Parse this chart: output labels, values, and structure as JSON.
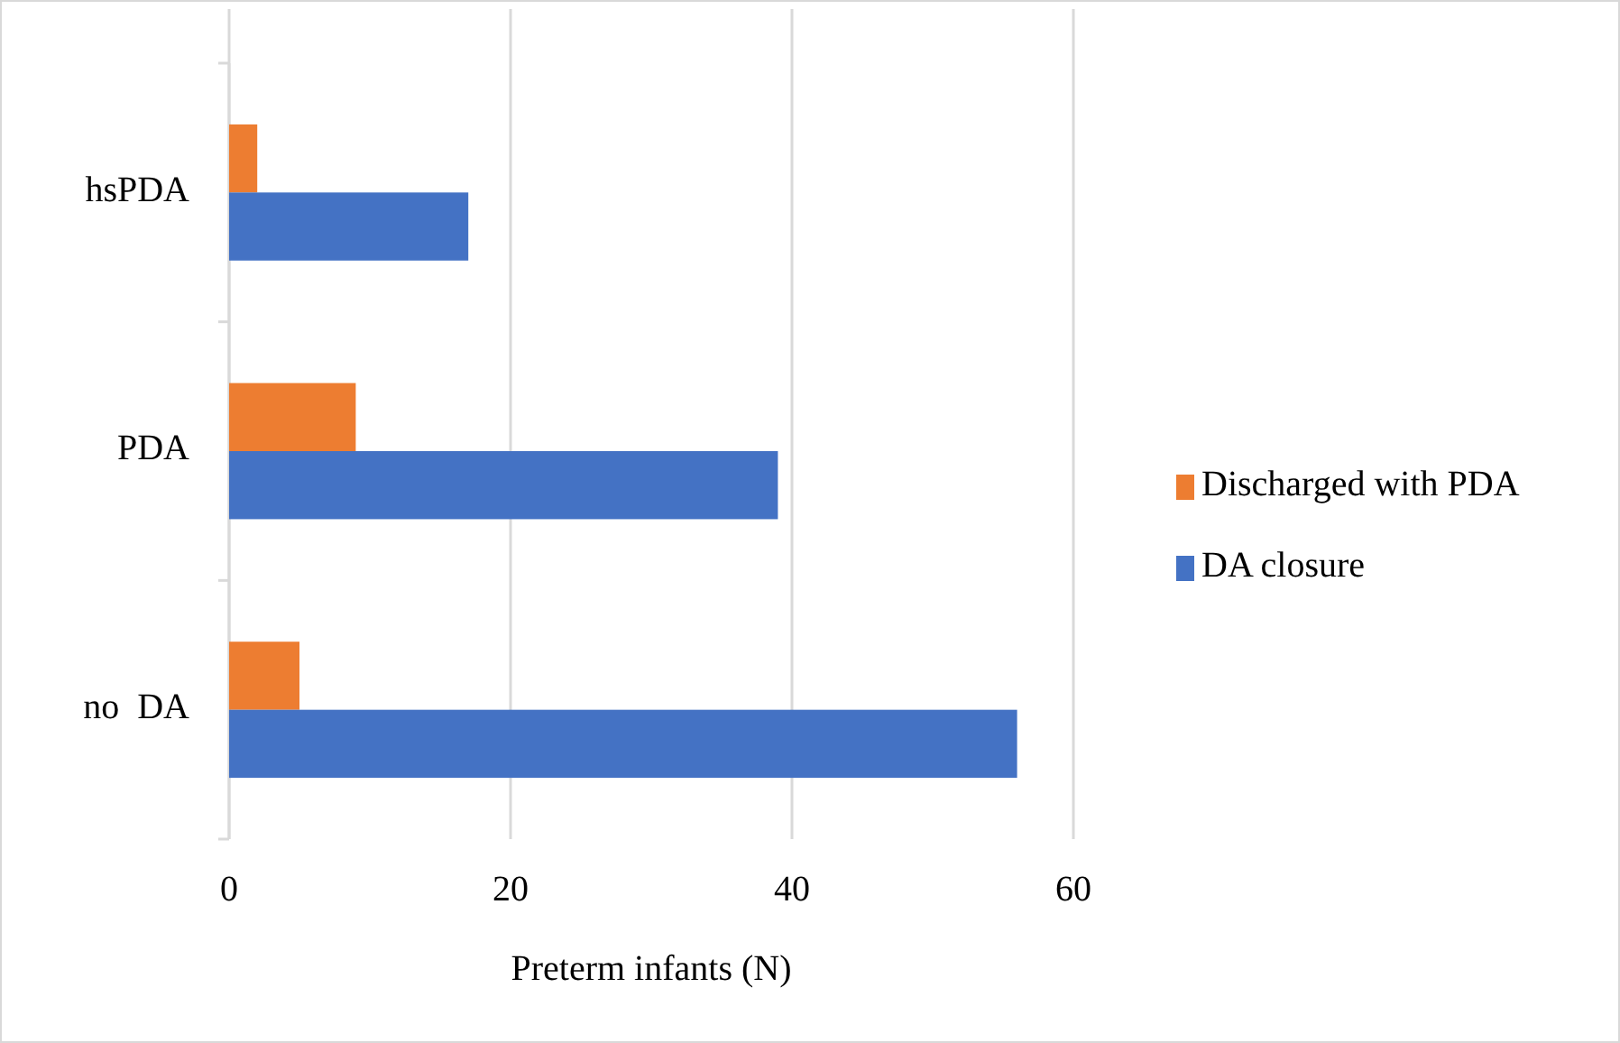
{
  "chart_data": {
    "type": "bar",
    "orientation": "horizontal",
    "xlabel": "Preterm infants (N)",
    "categories": [
      "hsPDA",
      "PDA",
      "no  DA"
    ],
    "series": [
      {
        "name": "Discharged with PDA",
        "color": "#ed7d31",
        "values": [
          2,
          9,
          5
        ]
      },
      {
        "name": "DA closure",
        "color": "#4472c4",
        "values": [
          17,
          39,
          56
        ]
      }
    ],
    "xlim": [
      0,
      60
    ],
    "xticks": [
      0,
      20,
      40,
      60
    ],
    "grid": "x",
    "legend": "right"
  }
}
